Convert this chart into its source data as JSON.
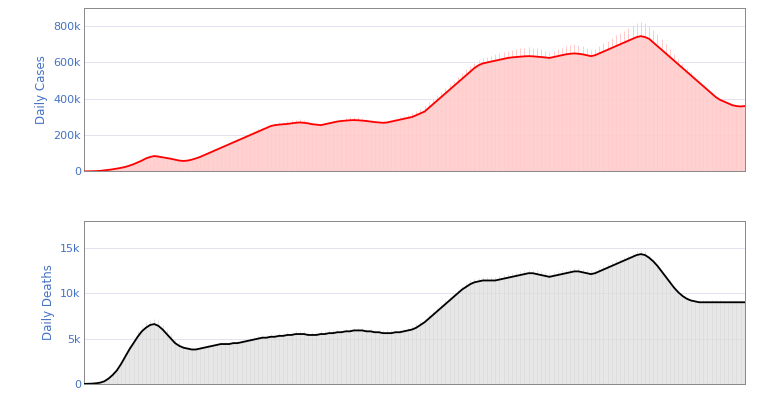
{
  "cases_smooth": [
    500,
    800,
    1200,
    2000,
    3500,
    6000,
    9000,
    12000,
    16000,
    20000,
    25000,
    32000,
    40000,
    50000,
    60000,
    72000,
    80000,
    85000,
    82000,
    78000,
    74000,
    70000,
    65000,
    60000,
    58000,
    60000,
    65000,
    72000,
    80000,
    90000,
    100000,
    110000,
    120000,
    130000,
    140000,
    150000,
    160000,
    170000,
    180000,
    190000,
    200000,
    210000,
    220000,
    230000,
    240000,
    250000,
    255000,
    258000,
    260000,
    262000,
    265000,
    268000,
    270000,
    268000,
    265000,
    260000,
    258000,
    255000,
    260000,
    265000,
    270000,
    275000,
    278000,
    280000,
    282000,
    283000,
    282000,
    280000,
    278000,
    275000,
    272000,
    270000,
    268000,
    270000,
    275000,
    280000,
    285000,
    290000,
    295000,
    300000,
    310000,
    320000,
    330000,
    350000,
    370000,
    390000,
    410000,
    430000,
    450000,
    470000,
    490000,
    510000,
    530000,
    550000,
    570000,
    585000,
    595000,
    600000,
    605000,
    610000,
    615000,
    620000,
    625000,
    628000,
    630000,
    632000,
    634000,
    635000,
    634000,
    632000,
    630000,
    628000,
    625000,
    630000,
    635000,
    640000,
    645000,
    648000,
    650000,
    648000,
    645000,
    640000,
    635000,
    640000,
    650000,
    660000,
    670000,
    680000,
    690000,
    700000,
    710000,
    720000,
    730000,
    740000,
    745000,
    740000,
    730000,
    710000,
    690000,
    670000,
    650000,
    630000,
    610000,
    590000,
    570000,
    550000,
    530000,
    510000,
    490000,
    470000,
    450000,
    430000,
    410000,
    395000,
    385000,
    375000,
    365000,
    360000,
    358000,
    360000
  ],
  "cases_raw": [
    500,
    900,
    1500,
    2500,
    4000,
    7000,
    10000,
    14000,
    18000,
    23000,
    28000,
    36000,
    45000,
    55000,
    65000,
    78000,
    86000,
    90000,
    88000,
    82000,
    78000,
    74000,
    68000,
    62000,
    60000,
    62000,
    68000,
    75000,
    84000,
    95000,
    105000,
    115000,
    125000,
    138000,
    148000,
    158000,
    168000,
    178000,
    190000,
    200000,
    210000,
    222000,
    232000,
    242000,
    252000,
    262000,
    268000,
    272000,
    275000,
    278000,
    282000,
    285000,
    288000,
    282000,
    275000,
    268000,
    262000,
    258000,
    265000,
    272000,
    278000,
    285000,
    290000,
    295000,
    298000,
    300000,
    298000,
    294000,
    288000,
    282000,
    276000,
    272000,
    270000,
    275000,
    282000,
    290000,
    298000,
    305000,
    312000,
    320000,
    332000,
    345000,
    358000,
    380000,
    400000,
    420000,
    440000,
    460000,
    480000,
    500000,
    520000,
    540000,
    562000,
    582000,
    598000,
    612000,
    622000,
    630000,
    638000,
    645000,
    650000,
    658000,
    665000,
    670000,
    675000,
    678000,
    682000,
    685000,
    682000,
    678000,
    672000,
    666000,
    658000,
    665000,
    672000,
    680000,
    690000,
    698000,
    702000,
    698000,
    690000,
    680000,
    668000,
    675000,
    690000,
    705000,
    720000,
    735000,
    750000,
    762000,
    775000,
    790000,
    805000,
    818000,
    825000,
    818000,
    800000,
    780000,
    755000,
    728000,
    700000,
    672000,
    645000,
    618000,
    592000,
    568000,
    545000,
    522000,
    500000,
    478000,
    455000,
    432000,
    415000,
    398000,
    388000,
    378000,
    368000,
    362000,
    362000,
    365000
  ],
  "deaths_smooth": [
    10,
    20,
    40,
    80,
    150,
    300,
    600,
    1000,
    1500,
    2200,
    3000,
    3800,
    4500,
    5200,
    5800,
    6200,
    6500,
    6600,
    6400,
    6000,
    5500,
    5000,
    4500,
    4200,
    4000,
    3900,
    3800,
    3800,
    3900,
    4000,
    4100,
    4200,
    4300,
    4400,
    4400,
    4400,
    4500,
    4500,
    4600,
    4700,
    4800,
    4900,
    5000,
    5100,
    5100,
    5200,
    5200,
    5300,
    5300,
    5400,
    5400,
    5500,
    5500,
    5500,
    5400,
    5400,
    5400,
    5500,
    5500,
    5600,
    5600,
    5700,
    5700,
    5800,
    5800,
    5900,
    5900,
    5900,
    5800,
    5800,
    5700,
    5700,
    5600,
    5600,
    5600,
    5700,
    5700,
    5800,
    5900,
    6000,
    6200,
    6500,
    6800,
    7200,
    7600,
    8000,
    8400,
    8800,
    9200,
    9600,
    10000,
    10400,
    10700,
    11000,
    11200,
    11300,
    11400,
    11400,
    11400,
    11400,
    11500,
    11600,
    11700,
    11800,
    11900,
    12000,
    12100,
    12200,
    12200,
    12100,
    12000,
    11900,
    11800,
    11900,
    12000,
    12100,
    12200,
    12300,
    12400,
    12400,
    12300,
    12200,
    12100,
    12200,
    12400,
    12600,
    12800,
    13000,
    13200,
    13400,
    13600,
    13800,
    14000,
    14200,
    14300,
    14200,
    13900,
    13500,
    13000,
    12400,
    11800,
    11200,
    10600,
    10100,
    9700,
    9400,
    9200,
    9100,
    9000,
    9000,
    9000,
    9000,
    9000,
    9000,
    9000,
    9000,
    9000,
    9000,
    9000,
    9000
  ],
  "deaths_raw": [
    15,
    30,
    60,
    100,
    200,
    400,
    800,
    1200,
    1800,
    2500,
    3400,
    4200,
    5000,
    5800,
    6400,
    6800,
    7100,
    7200,
    7000,
    6500,
    6000,
    5500,
    5000,
    4600,
    4200,
    4100,
    4000,
    4000,
    4100,
    4200,
    4300,
    4400,
    4500,
    4600,
    4600,
    4600,
    4700,
    4700,
    4800,
    4900,
    5100,
    5200,
    5300,
    5400,
    5400,
    5500,
    5500,
    5600,
    5600,
    5700,
    5700,
    5800,
    5800,
    5800,
    5700,
    5700,
    5700,
    5800,
    5800,
    5900,
    5900,
    6000,
    6000,
    6100,
    6100,
    6200,
    6200,
    6200,
    6100,
    6100,
    6000,
    6000,
    5900,
    5900,
    5900,
    6000,
    6000,
    6100,
    6200,
    6400,
    6600,
    6900,
    7200,
    7600,
    8000,
    8400,
    8800,
    9200,
    9600,
    10000,
    10400,
    10800,
    11100,
    11400,
    11600,
    11700,
    11800,
    11800,
    11800,
    11800,
    11900,
    12000,
    12100,
    12200,
    12300,
    12400,
    12500,
    12600,
    12600,
    12500,
    12400,
    12300,
    12200,
    12300,
    12400,
    12500,
    12600,
    12700,
    12800,
    12800,
    12700,
    12600,
    12500,
    12600,
    12800,
    13000,
    13200,
    13400,
    13600,
    13800,
    14000,
    14200,
    14400,
    14600,
    14700,
    14600,
    14200,
    13800,
    13200,
    12600,
    12000,
    11400,
    10800,
    10300,
    9900,
    9600,
    9400,
    9300,
    9200,
    9200,
    9200,
    9200,
    9200,
    9200,
    9100,
    9100,
    9100,
    9100,
    9100,
    9100
  ],
  "cases_ylim": [
    0,
    900000
  ],
  "deaths_ylim": [
    0,
    18000
  ],
  "cases_yticks": [
    0,
    200000,
    400000,
    600000,
    800000
  ],
  "cases_yticklabels": [
    "0",
    "200k",
    "400k",
    "600k",
    "800k"
  ],
  "deaths_yticks": [
    0,
    5000,
    10000,
    15000
  ],
  "deaths_yticklabels": [
    "0",
    "5k",
    "10k",
    "15k"
  ],
  "ylabel_cases": "Daily Cases",
  "ylabel_deaths": "Daily Deaths",
  "label_color": "#4472C4",
  "cases_line_color": "#FF0000",
  "cases_fill_color": "#FFCCCC",
  "cases_raw_color": "#FF9999",
  "deaths_line_color": "#000000",
  "deaths_fill_color": "#DDDDDD",
  "deaths_raw_color": "#CCCCCC",
  "bg_color": "#FFFFFF",
  "grid_color": "#DDDDEE",
  "spine_color": "#888888"
}
